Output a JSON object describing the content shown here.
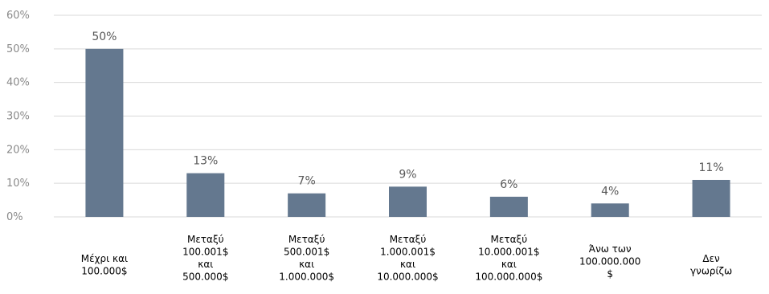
{
  "chart_data": {
    "type": "bar",
    "categories": [
      [
        "Μέχρι και",
        "100.000$"
      ],
      [
        "Μεταξύ",
        "100.001$",
        "και",
        "500.000$"
      ],
      [
        "Μεταξύ",
        "500.001$",
        "και",
        "1.000.000$"
      ],
      [
        "Μεταξύ",
        "1.000.001$",
        "και",
        "10.000.000$"
      ],
      [
        "Μεταξύ",
        "10.000.001$",
        "και",
        "100.000.000$"
      ],
      [
        "Άνω των",
        "100.000.000",
        "$"
      ],
      [
        "Δεν",
        "γνωρίζω"
      ]
    ],
    "values": [
      50,
      13,
      7,
      9,
      6,
      4,
      11
    ],
    "data_labels": [
      "50%",
      "13%",
      "7%",
      "9%",
      "6%",
      "4%",
      "11%"
    ],
    "yticks": [
      "0%",
      "10%",
      "20%",
      "30%",
      "40%",
      "50%",
      "60%"
    ],
    "ylim": [
      0,
      60
    ],
    "grid": true,
    "bar_color": "#64788f",
    "grid_color": "#d9d9d9"
  }
}
